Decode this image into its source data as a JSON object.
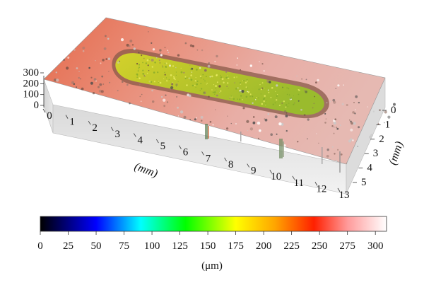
{
  "surface_plot": {
    "x_axis": {
      "label": "(mm)",
      "ticks": [
        "0",
        "1",
        "2",
        "3",
        "4",
        "5",
        "6",
        "7",
        "8",
        "9",
        "10",
        "11",
        "12",
        "13"
      ]
    },
    "y_axis": {
      "label": "(mm)",
      "ticks": [
        "0",
        "1",
        "2",
        "3",
        "4",
        "5"
      ]
    },
    "z_axis": {
      "label": "",
      "ticks": [
        "0",
        "100",
        "200",
        "300"
      ]
    },
    "colorbar": {
      "unit_label": "(μm)",
      "ticks": [
        "0",
        "25",
        "50",
        "75",
        "100",
        "125",
        "150",
        "175",
        "200",
        "225",
        "250",
        "275",
        "300"
      ],
      "range": [
        0,
        310
      ],
      "stops": [
        {
          "value": 0,
          "color": "#000000"
        },
        {
          "value": 50,
          "color": "#0000ff"
        },
        {
          "value": 90,
          "color": "#00ffff"
        },
        {
          "value": 130,
          "color": "#00ff00"
        },
        {
          "value": 175,
          "color": "#ffff00"
        },
        {
          "value": 210,
          "color": "#ffa500"
        },
        {
          "value": 245,
          "color": "#ff2000"
        },
        {
          "value": 275,
          "color": "#ff9a9a"
        },
        {
          "value": 310,
          "color": "#ffffff"
        }
      ]
    },
    "colors": {
      "top_surface_red": "#e86a50",
      "top_surface_pink": "#e9b2ab",
      "trench_yellow": "#cfd12a",
      "trench_green": "#9bbf2c",
      "side_wall": "#e6e6e6"
    }
  }
}
